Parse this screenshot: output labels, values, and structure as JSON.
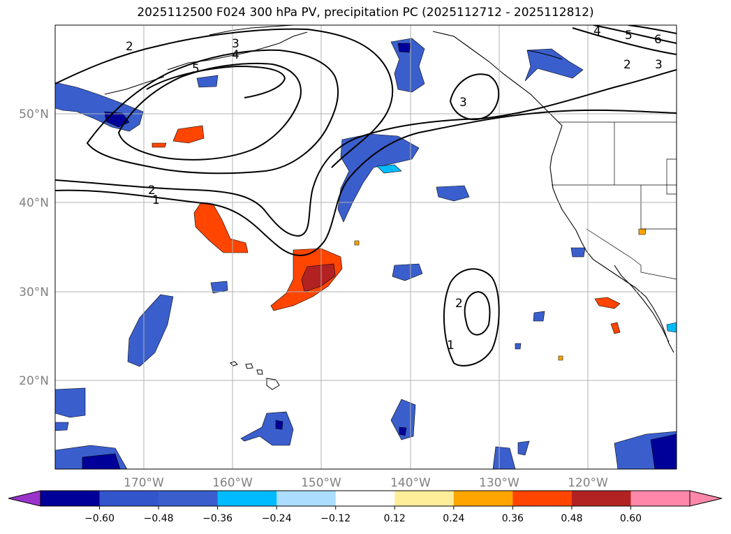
{
  "title": "2025112500 F024 300 hPa PV, precipitation PC (2025112712 - 2025112812)",
  "colors": {
    "grid": "#b0b0b0",
    "tick_label": "#808080",
    "coast": "#000000",
    "cb_under": "#9933cc",
    "cb_over": "#ff88aa"
  },
  "map": {
    "lon_range": [
      -180,
      -110
    ],
    "lat_range": [
      10,
      60
    ],
    "lon_ticks": [
      {
        "value": -170,
        "label": "170°W"
      },
      {
        "value": -160,
        "label": "160°W"
      },
      {
        "value": -150,
        "label": "150°W"
      },
      {
        "value": -140,
        "label": "140°W"
      },
      {
        "value": -130,
        "label": "130°W"
      },
      {
        "value": -120,
        "label": "120°W"
      }
    ],
    "lat_ticks": [
      {
        "value": 50,
        "label": "50°N"
      },
      {
        "value": 40,
        "label": "40°N"
      },
      {
        "value": 30,
        "label": "30°N"
      },
      {
        "value": 20,
        "label": "20°N"
      }
    ]
  },
  "pv_contour_labels": [
    "1",
    "2",
    "3",
    "4",
    "5",
    "6"
  ],
  "colorbar": {
    "ticks": [
      "−0.60",
      "−0.48",
      "−0.36",
      "−0.24",
      "−0.12",
      "0.12",
      "0.24",
      "0.36",
      "0.48",
      "0.60"
    ],
    "bins": [
      {
        "color": "#000099"
      },
      {
        "color": "#3355cc"
      },
      {
        "color": "#3a5fcd"
      },
      {
        "color": "#00bbff"
      },
      {
        "color": "#aaddff"
      },
      {
        "color": "#ffffff"
      },
      {
        "color": "#ffee99"
      },
      {
        "color": "#ffa500"
      },
      {
        "color": "#ff4500"
      },
      {
        "color": "#b22222"
      }
    ]
  }
}
